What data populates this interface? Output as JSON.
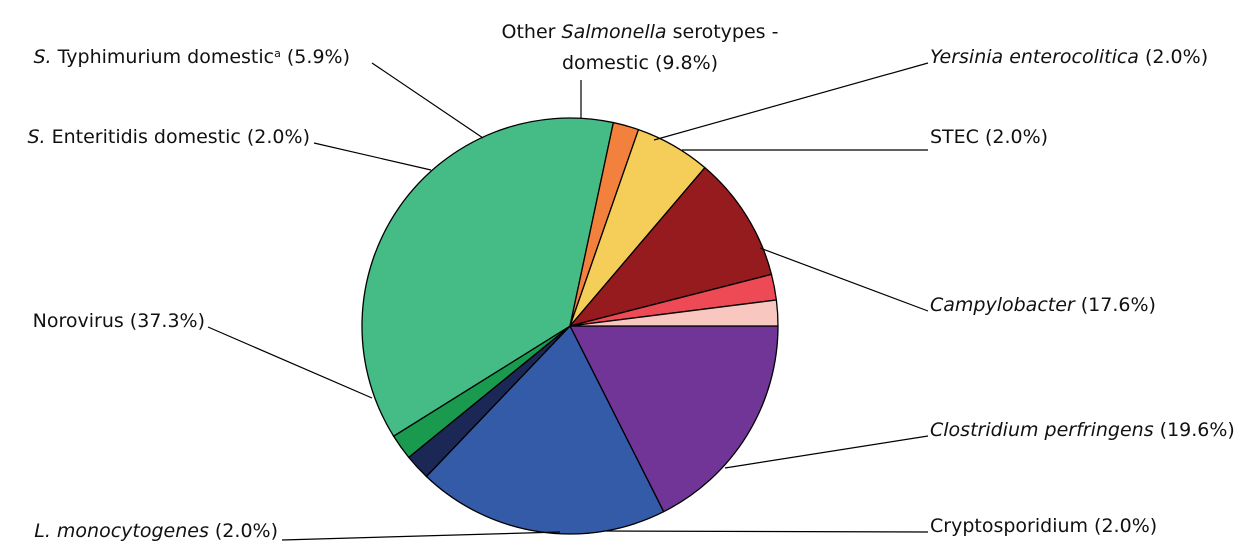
{
  "chart_data": {
    "type": "pie",
    "title": "",
    "start_angle_deg": 0,
    "direction": "clockwise",
    "slices": [
      {
        "id": "campylobacter",
        "value": 17.6,
        "color": "#713597",
        "label": [
          {
            "t": "Campylobacter",
            "i": true
          },
          {
            "t": " (17.6%)",
            "i": false
          }
        ]
      },
      {
        "id": "clostridium",
        "value": 19.6,
        "color": "#345BA8",
        "label": [
          {
            "t": "Clostridium perfringens",
            "i": true
          },
          {
            "t": " (19.6%)",
            "i": false
          }
        ]
      },
      {
        "id": "cryptosporidium",
        "value": 2.0,
        "color": "#1B2754",
        "label": [
          {
            "t": "Cryptosporidium (2.0%)",
            "i": false
          }
        ]
      },
      {
        "id": "listeria",
        "value": 2.0,
        "color": "#1A9A4E",
        "label": [
          {
            "t": "L. monocytogenes",
            "i": true
          },
          {
            "t": " (2.0%)",
            "i": false
          }
        ]
      },
      {
        "id": "norovirus",
        "value": 37.3,
        "color": "#45BC86",
        "label": [
          {
            "t": "Norovirus (37.3%)",
            "i": false
          }
        ]
      },
      {
        "id": "s-enteritidis",
        "value": 2.0,
        "color": "#F3813E",
        "label": [
          {
            "t": "S.",
            "i": true
          },
          {
            "t": " Enteritidis domestic (2.0%)",
            "i": false
          }
        ]
      },
      {
        "id": "s-typhimurium",
        "value": 5.9,
        "color": "#F5CE59",
        "label": [
          {
            "t": "S.",
            "i": true
          },
          {
            "t": " Typhimurium domestic",
            "i": false
          },
          {
            "t": "a",
            "i": false,
            "sup": true
          },
          {
            "t": " (5.9%)",
            "i": false
          }
        ]
      },
      {
        "id": "other-salmonella",
        "value": 9.8,
        "color": "#951B1E",
        "label": [
          {
            "t": "Other ",
            "i": false
          },
          {
            "t": "Salmonella",
            "i": true
          },
          {
            "t": " serotypes -",
            "i": false
          }
        ],
        "label_line2": [
          {
            "t": "domestic (9.8%)",
            "i": false
          }
        ]
      },
      {
        "id": "yersinia",
        "value": 2.0,
        "color": "#EE4A55",
        "label": [
          {
            "t": "Yersinia enterocolitica",
            "i": true
          },
          {
            "t": " (2.0%)",
            "i": false
          }
        ]
      },
      {
        "id": "stec",
        "value": 2.0,
        "color": "#F8C7C0",
        "label": [
          {
            "t": "STEC (2.0%)",
            "i": false
          }
        ]
      }
    ]
  }
}
